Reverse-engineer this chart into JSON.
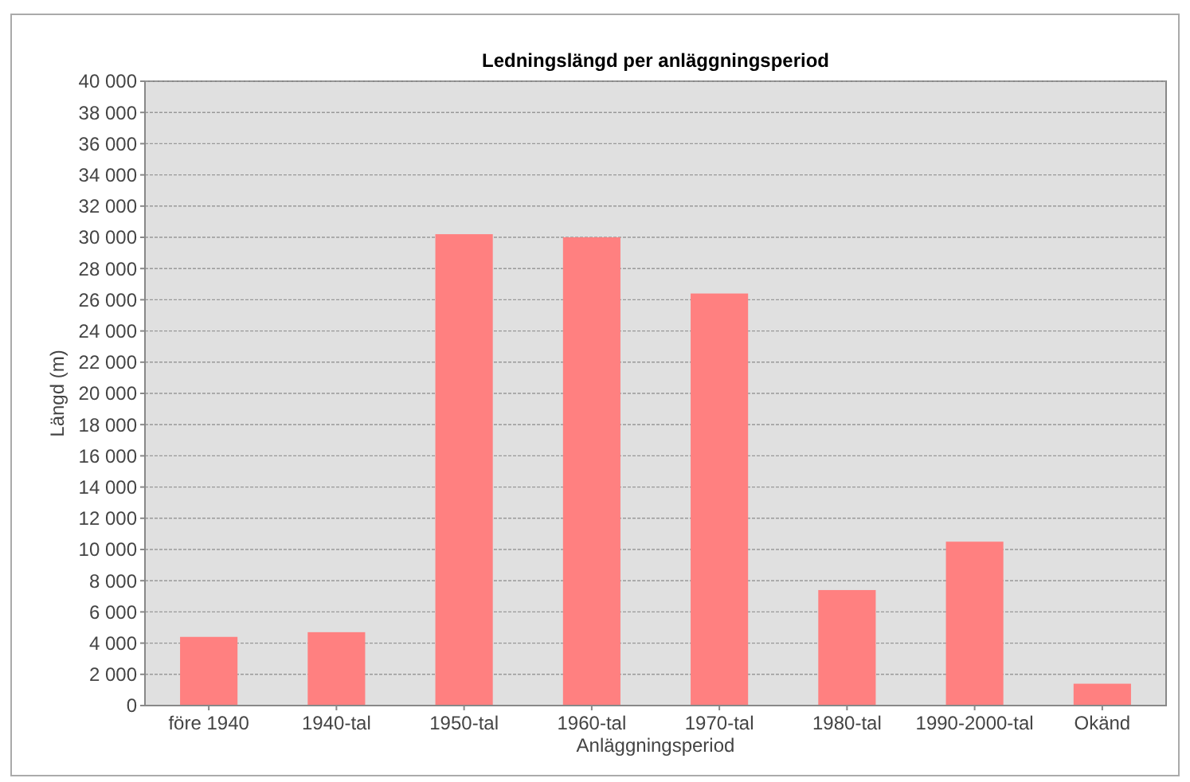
{
  "chart_data": {
    "type": "bar",
    "title": "Ledningslängd per anläggningsperiod",
    "xlabel": "Anläggningsperiod",
    "ylabel": "Längd (m)",
    "categories": [
      "före 1940",
      "1940-tal",
      "1950-tal",
      "1960-tal",
      "1970-tal",
      "1980-tal",
      "1990-2000-tal",
      "Okänd"
    ],
    "values": [
      4400,
      4700,
      30200,
      30000,
      26400,
      7400,
      10500,
      1400
    ],
    "color": "#ff8080",
    "ylim": [
      0,
      40000
    ],
    "yticks": [
      0,
      {
        "value": 2000,
        "label": "2 000"
      },
      {
        "value": 4000,
        "label": "4 000"
      },
      {
        "value": 6000,
        "label": "6 000"
      },
      {
        "value": 8000,
        "label": "8 000"
      },
      {
        "value": 10000,
        "label": "10 000"
      },
      {
        "value": 12000,
        "label": "12 000"
      },
      {
        "value": 14000,
        "label": "14 000"
      },
      {
        "value": 16000,
        "label": "16 000"
      },
      {
        "value": 18000,
        "label": "18 000"
      },
      {
        "value": 20000,
        "label": "20 000"
      },
      {
        "value": 22000,
        "label": "22 000"
      },
      {
        "value": 24000,
        "label": "24 000"
      },
      {
        "value": 26000,
        "label": "26 000"
      },
      {
        "value": 28000,
        "label": "28 000"
      },
      {
        "value": 30000,
        "label": "30 000"
      },
      {
        "value": 32000,
        "label": "32 000"
      },
      {
        "value": 34000,
        "label": "34 000"
      },
      {
        "value": 36000,
        "label": "36 000"
      },
      {
        "value": 38000,
        "label": "38 000"
      },
      {
        "value": 40000,
        "label": "40 000"
      }
    ],
    "grid": "y"
  }
}
